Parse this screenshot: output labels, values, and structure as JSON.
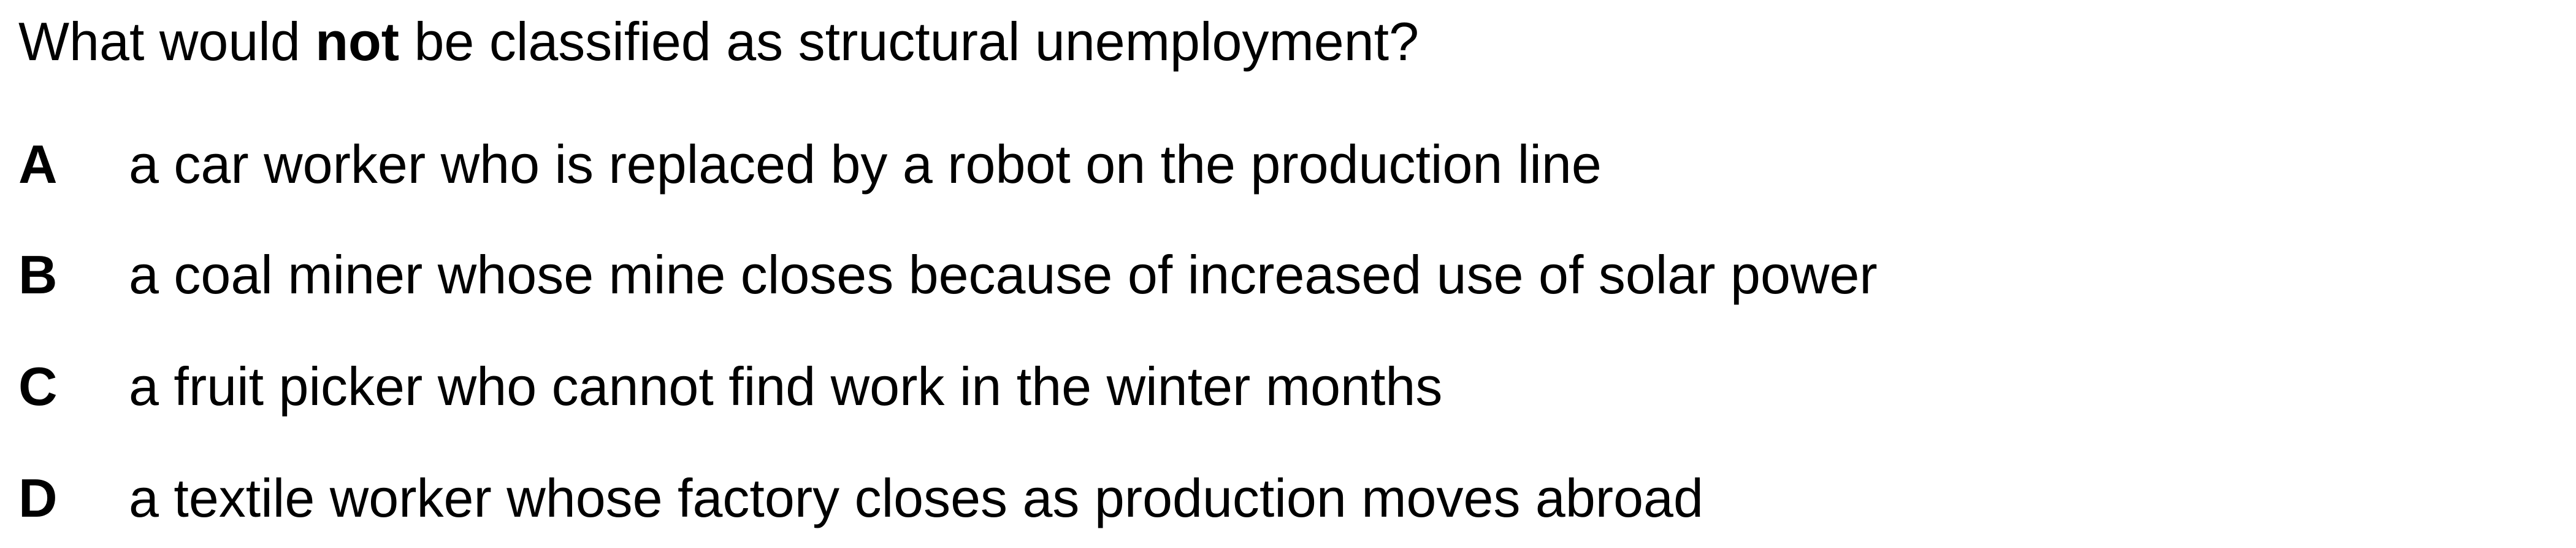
{
  "question": {
    "before": "What would ",
    "emphasis": "not",
    "after": " be classified as structural unemployment?"
  },
  "options": [
    {
      "letter": "A",
      "text": "a car worker who is replaced by a robot on the production line"
    },
    {
      "letter": "B",
      "text": "a coal miner whose mine closes because of increased use of solar power"
    },
    {
      "letter": "C",
      "text": "a fruit picker who cannot find work in the winter months"
    },
    {
      "letter": "D",
      "text": "a textile worker whose factory closes as production moves abroad"
    }
  ]
}
